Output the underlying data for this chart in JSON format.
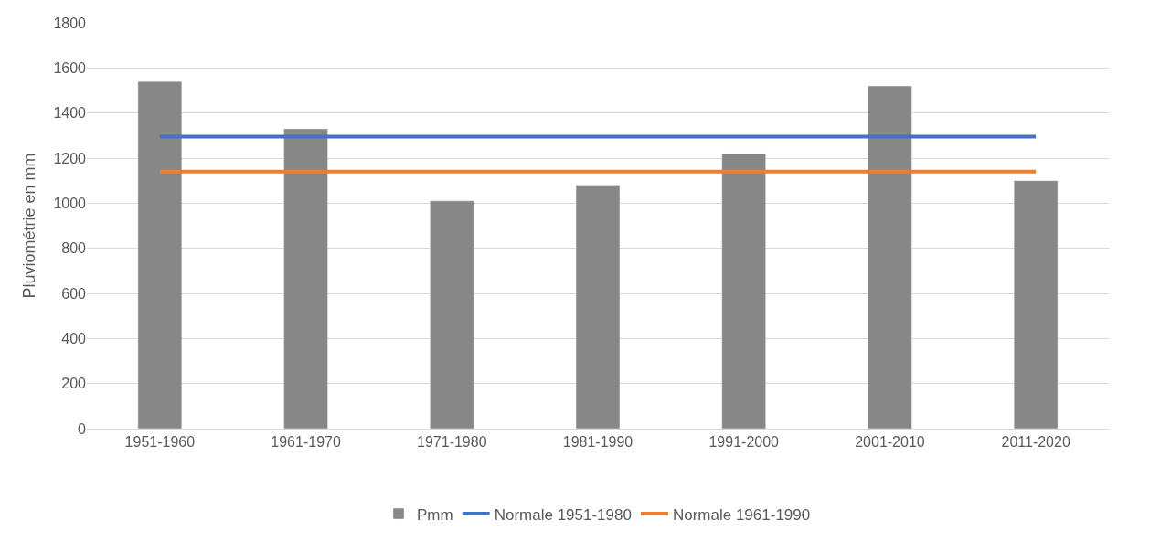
{
  "chart_data": {
    "type": "bar",
    "ylabel": "Pluviométrie en mm",
    "categories": [
      "1951-1960",
      "1961-1970",
      "1971-1980",
      "1981-1990",
      "1991-2000",
      "2001-2010",
      "2011-2020"
    ],
    "series": [
      {
        "name": "Pmm",
        "color": "#878787",
        "values": [
          1540,
          1330,
          1010,
          1080,
          1220,
          1520,
          1100
        ]
      },
      {
        "name": "Normale 1951-1980",
        "type": "line",
        "color": "#4472c4",
        "values": [
          1295,
          1295,
          1295,
          1295,
          1295,
          1295,
          1295
        ]
      },
      {
        "name": "Normale 1961-1990",
        "type": "line",
        "color": "#ed7d31",
        "values": [
          1140,
          1140,
          1140,
          1140,
          1140,
          1140,
          1140
        ]
      }
    ],
    "ylim": [
      0,
      1800
    ],
    "yticks": [
      0,
      200,
      400,
      600,
      800,
      1000,
      1200,
      1400,
      1600,
      1800
    ],
    "grid": "y",
    "legend": "bottom",
    "marker": "none",
    "line_style": "solid"
  }
}
